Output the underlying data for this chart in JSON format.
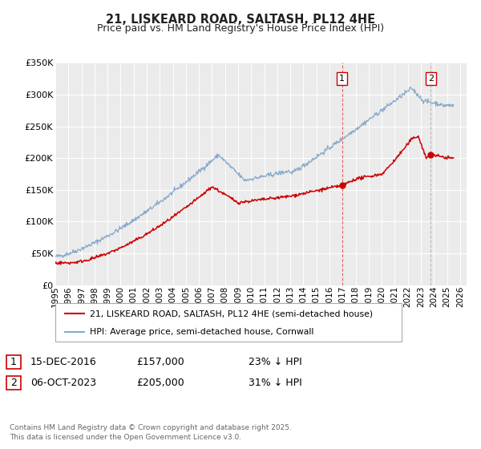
{
  "title": "21, LISKEARD ROAD, SALTASH, PL12 4HE",
  "subtitle": "Price paid vs. HM Land Registry's House Price Index (HPI)",
  "title_fontsize": 10.5,
  "subtitle_fontsize": 9,
  "background_color": "#ffffff",
  "plot_bg_color": "#ebebeb",
  "grid_color": "#ffffff",
  "red_color": "#cc0000",
  "blue_color": "#88aacc",
  "xmin": 1995.0,
  "xmax": 2026.5,
  "ymin": 0,
  "ymax": 350000,
  "yticks": [
    0,
    50000,
    100000,
    150000,
    200000,
    250000,
    300000,
    350000
  ],
  "ytick_labels": [
    "£0",
    "£50K",
    "£100K",
    "£150K",
    "£200K",
    "£250K",
    "£300K",
    "£350K"
  ],
  "xticks": [
    1995,
    1996,
    1997,
    1998,
    1999,
    2000,
    2001,
    2002,
    2003,
    2004,
    2005,
    2006,
    2007,
    2008,
    2009,
    2010,
    2011,
    2012,
    2013,
    2014,
    2015,
    2016,
    2017,
    2018,
    2019,
    2020,
    2021,
    2022,
    2023,
    2024,
    2025,
    2026
  ],
  "marker1_x": 2016.958,
  "marker1_y": 157000,
  "marker1_label": "1",
  "marker1_date": "15-DEC-2016",
  "marker1_price": "£157,000",
  "marker1_hpi": "23% ↓ HPI",
  "marker2_x": 2023.755,
  "marker2_y": 205000,
  "marker2_label": "2",
  "marker2_date": "06-OCT-2023",
  "marker2_price": "£205,000",
  "marker2_hpi": "31% ↓ HPI",
  "legend_line1": "21, LISKEARD ROAD, SALTASH, PL12 4HE (semi-detached house)",
  "legend_line2": "HPI: Average price, semi-detached house, Cornwall",
  "footer": "Contains HM Land Registry data © Crown copyright and database right 2025.\nThis data is licensed under the Open Government Licence v3.0."
}
